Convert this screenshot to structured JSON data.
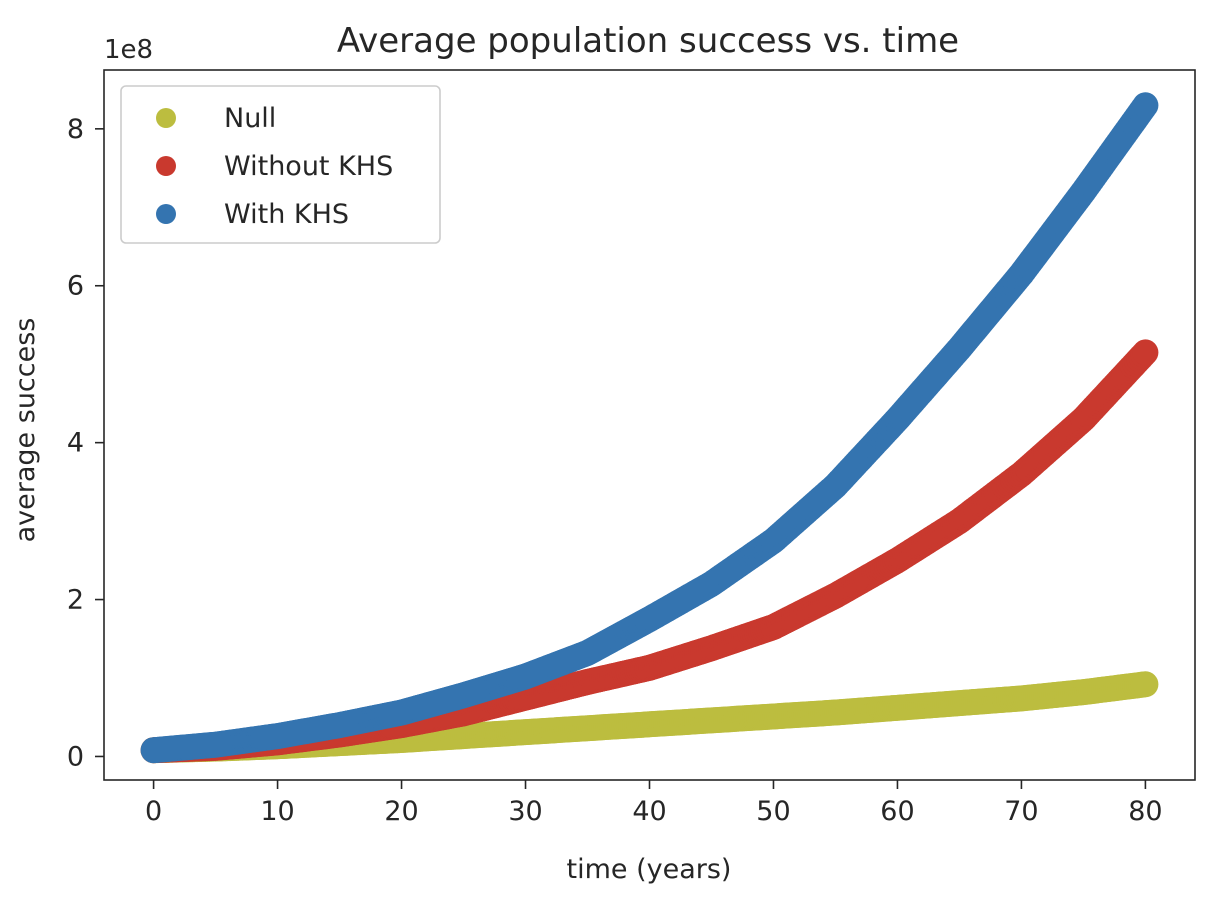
{
  "chart_data": {
    "type": "scatter",
    "title": "Average population success vs. time",
    "xlabel": "time (years)",
    "ylabel": "average success",
    "y_offset_label": "1e8",
    "xlim": [
      -4,
      84
    ],
    "ylim": [
      -0.3,
      8.75
    ],
    "y_scale_note": "values in units of 1e8",
    "xticks": [
      0,
      10,
      20,
      30,
      40,
      50,
      60,
      70,
      80
    ],
    "xtick_labels": [
      "0",
      "10",
      "20",
      "30",
      "40",
      "50",
      "60",
      "70",
      "80"
    ],
    "yticks": [
      0,
      2,
      4,
      6,
      8
    ],
    "ytick_labels": [
      "0",
      "2",
      "4",
      "6",
      "8"
    ],
    "grid": false,
    "legend_position": "top-left",
    "series": [
      {
        "name": "Null",
        "color": "#bcbd3f",
        "x": [
          0,
          5,
          10,
          15,
          20,
          25,
          30,
          35,
          40,
          45,
          50,
          55,
          60,
          65,
          70,
          75,
          80
        ],
        "y": [
          0.08,
          0.1,
          0.13,
          0.17,
          0.21,
          0.26,
          0.31,
          0.36,
          0.41,
          0.46,
          0.51,
          0.56,
          0.62,
          0.68,
          0.74,
          0.82,
          0.92
        ]
      },
      {
        "name": "Without KHS",
        "color": "#c9392e",
        "x": [
          0,
          5,
          10,
          15,
          20,
          25,
          30,
          35,
          40,
          45,
          50,
          55,
          60,
          65,
          70,
          75,
          80
        ],
        "y": [
          0.08,
          0.11,
          0.18,
          0.28,
          0.4,
          0.55,
          0.75,
          0.95,
          1.13,
          1.38,
          1.65,
          2.05,
          2.5,
          3.0,
          3.6,
          4.3,
          5.15
        ]
      },
      {
        "name": "With KHS",
        "color": "#3474b0",
        "x": [
          0,
          5,
          10,
          15,
          20,
          25,
          30,
          35,
          40,
          45,
          50,
          55,
          60,
          65,
          70,
          75,
          80
        ],
        "y": [
          0.08,
          0.15,
          0.26,
          0.4,
          0.56,
          0.78,
          1.02,
          1.32,
          1.75,
          2.2,
          2.75,
          3.45,
          4.3,
          5.2,
          6.15,
          7.2,
          8.3
        ]
      }
    ]
  }
}
